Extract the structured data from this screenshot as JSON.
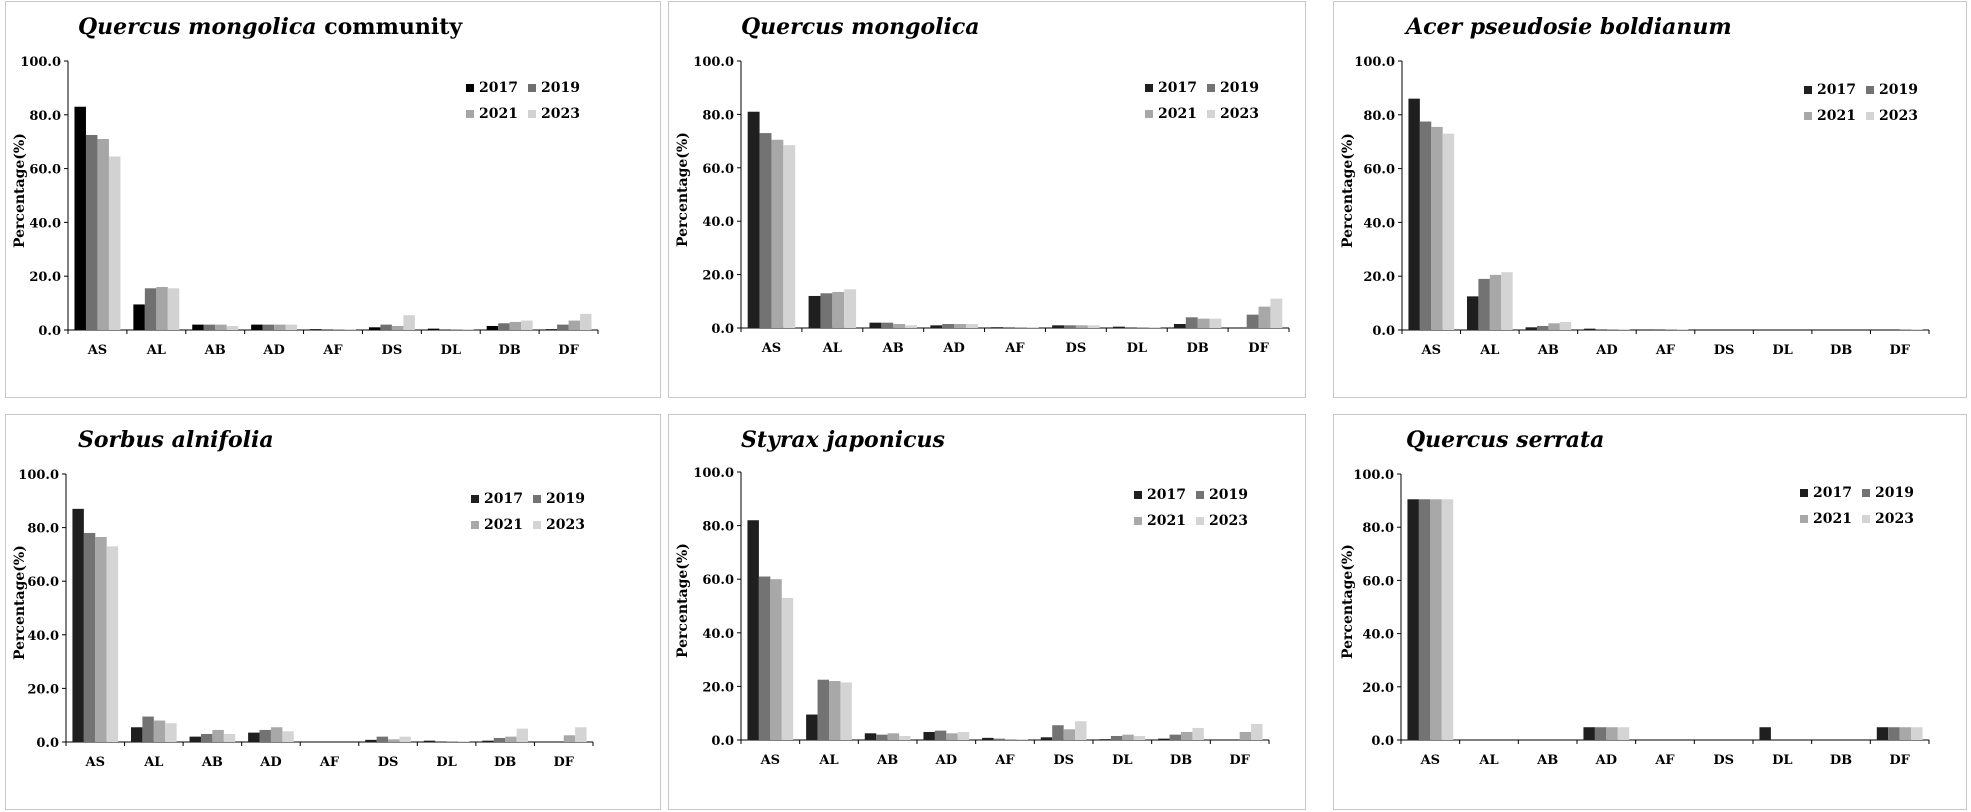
{
  "legend": [
    "2017",
    "2019",
    "2021",
    "2023"
  ],
  "colors": [
    "#1f1f1f",
    "#737373",
    "#a8a8a8",
    "#d4d4d4"
  ],
  "colors_panel1": [
    "#000000",
    "#707070",
    "#a6a6a6",
    "#d2d2d2"
  ],
  "chart_data": [
    {
      "type": "bar",
      "title_italic": "Quercus mongolica",
      "title_plain": " community",
      "ylabel": "Percentage(%)",
      "categories": [
        "AS",
        "AL",
        "AB",
        "AD",
        "AF",
        "DS",
        "DL",
        "DB",
        "DF"
      ],
      "ylim": [
        0,
        100
      ],
      "yticks": [
        "0.0",
        "20.0",
        "40.0",
        "60.0",
        "80.0",
        "100.0"
      ],
      "legend_position": "top-right",
      "grid": false,
      "series": [
        {
          "name": "2017",
          "values": [
            83.0,
            9.5,
            2.0,
            2.0,
            0.3,
            1.0,
            0.5,
            1.5,
            0.3
          ]
        },
        {
          "name": "2019",
          "values": [
            72.5,
            15.5,
            2.0,
            2.0,
            0.3,
            2.0,
            0.3,
            2.5,
            2.0
          ]
        },
        {
          "name": "2021",
          "values": [
            71.0,
            16.0,
            2.0,
            2.0,
            0.3,
            1.5,
            0.3,
            3.0,
            3.5
          ]
        },
        {
          "name": "2023",
          "values": [
            64.5,
            15.5,
            1.5,
            2.0,
            0.3,
            5.5,
            0.3,
            3.5,
            6.0
          ]
        }
      ]
    },
    {
      "type": "bar",
      "title_italic": "Quercus mongolica",
      "title_plain": "",
      "ylabel": "Percentage(%)",
      "categories": [
        "AS",
        "AL",
        "AB",
        "AD",
        "AF",
        "DS",
        "DL",
        "DB",
        "DF"
      ],
      "ylim": [
        0,
        100
      ],
      "yticks": [
        "0.0",
        "20.0",
        "40.0",
        "60.0",
        "80.0",
        "100.0"
      ],
      "legend_position": "top-right",
      "grid": false,
      "series": [
        {
          "name": "2017",
          "values": [
            81.0,
            12.0,
            2.0,
            1.0,
            0.3,
            1.0,
            0.5,
            1.5,
            0.0
          ]
        },
        {
          "name": "2019",
          "values": [
            73.0,
            13.0,
            2.0,
            1.5,
            0.3,
            1.0,
            0.3,
            4.0,
            5.0
          ]
        },
        {
          "name": "2021",
          "values": [
            70.5,
            13.5,
            1.5,
            1.5,
            0.3,
            1.0,
            0.3,
            3.5,
            8.0
          ]
        },
        {
          "name": "2023",
          "values": [
            68.5,
            14.5,
            1.0,
            1.5,
            0.3,
            1.0,
            0.3,
            3.5,
            11.0
          ]
        }
      ]
    },
    {
      "type": "bar",
      "title_italic": "Acer pseudosie boldianum",
      "title_plain": "",
      "ylabel": "Percentage(%)",
      "categories": [
        "AS",
        "AL",
        "AB",
        "AD",
        "AF",
        "DS",
        "DL",
        "DB",
        "DF"
      ],
      "ylim": [
        0,
        100
      ],
      "yticks": [
        "0.0",
        "20.0",
        "40.0",
        "60.0",
        "80.0",
        "100.0"
      ],
      "legend_position": "top-right",
      "grid": false,
      "series": [
        {
          "name": "2017",
          "values": [
            86.0,
            12.5,
            1.0,
            0.5,
            0.0,
            0.0,
            0.0,
            0.0,
            0.0
          ]
        },
        {
          "name": "2019",
          "values": [
            77.5,
            19.0,
            1.5,
            0.3,
            0.3,
            0.0,
            0.0,
            0.0,
            0.0
          ]
        },
        {
          "name": "2021",
          "values": [
            75.5,
            20.5,
            2.5,
            0.3,
            0.3,
            0.0,
            0.0,
            0.0,
            0.3
          ]
        },
        {
          "name": "2023",
          "values": [
            73.0,
            21.5,
            3.0,
            0.3,
            0.3,
            0.0,
            0.0,
            0.0,
            0.3
          ]
        }
      ]
    },
    {
      "type": "bar",
      "title_italic": "Sorbus alnifolia",
      "title_plain": "",
      "ylabel": "Percentage(%)",
      "categories": [
        "AS",
        "AL",
        "AB",
        "AD",
        "AF",
        "DS",
        "DL",
        "DB",
        "DF"
      ],
      "ylim": [
        0,
        100
      ],
      "yticks": [
        "0.0",
        "20.0",
        "40.0",
        "60.0",
        "80.0",
        "100.0"
      ],
      "legend_position": "top-right",
      "grid": false,
      "series": [
        {
          "name": "2017",
          "values": [
            87.0,
            5.5,
            2.0,
            3.5,
            0.0,
            0.8,
            0.5,
            0.5,
            0.0
          ]
        },
        {
          "name": "2019",
          "values": [
            78.0,
            9.5,
            3.0,
            4.5,
            0.0,
            2.0,
            0.3,
            1.5,
            0.0
          ]
        },
        {
          "name": "2021",
          "values": [
            76.5,
            8.0,
            4.5,
            5.5,
            0.0,
            1.0,
            0.3,
            2.0,
            2.5
          ]
        },
        {
          "name": "2023",
          "values": [
            73.0,
            7.0,
            3.0,
            4.0,
            0.0,
            2.0,
            0.3,
            5.0,
            5.5
          ]
        }
      ]
    },
    {
      "type": "bar",
      "title_italic": "Styrax japonicus",
      "title_plain": "",
      "ylabel": "Percentage(%)",
      "categories": [
        "AS",
        "AL",
        "AB",
        "AD",
        "AF",
        "DS",
        "DL",
        "DB",
        "DF"
      ],
      "ylim": [
        0,
        100
      ],
      "yticks": [
        "0.0",
        "20.0",
        "40.0",
        "60.0",
        "80.0",
        "100.0"
      ],
      "legend_position": "top-right",
      "grid": false,
      "series": [
        {
          "name": "2017",
          "values": [
            82.0,
            9.5,
            2.5,
            3.0,
            0.8,
            1.0,
            0.3,
            0.5,
            0.0
          ]
        },
        {
          "name": "2019",
          "values": [
            61.0,
            22.5,
            2.0,
            3.5,
            0.5,
            5.5,
            1.5,
            2.0,
            0.0
          ]
        },
        {
          "name": "2021",
          "values": [
            60.0,
            22.0,
            2.5,
            2.5,
            0.3,
            4.0,
            2.0,
            3.0,
            3.0
          ]
        },
        {
          "name": "2023",
          "values": [
            53.0,
            21.5,
            1.5,
            3.0,
            0.3,
            7.0,
            1.5,
            4.5,
            6.0
          ]
        }
      ]
    },
    {
      "type": "bar",
      "title_italic": "Quercus serrata",
      "title_plain": "",
      "ylabel": "Percentage(%)",
      "categories": [
        "AS",
        "AL",
        "AB",
        "AD",
        "AF",
        "DS",
        "DL",
        "DB",
        "DF"
      ],
      "ylim": [
        0,
        100
      ],
      "yticks": [
        "0.0",
        "20.0",
        "40.0",
        "60.0",
        "80.0",
        "100.0"
      ],
      "legend_position": "top-right",
      "grid": false,
      "series": [
        {
          "name": "2017",
          "values": [
            90.5,
            0.0,
            0.0,
            4.8,
            0.0,
            0.0,
            4.8,
            0.0,
            4.8
          ]
        },
        {
          "name": "2019",
          "values": [
            90.5,
            0.0,
            0.0,
            4.8,
            0.0,
            0.0,
            0.0,
            0.0,
            4.8
          ]
        },
        {
          "name": "2021",
          "values": [
            90.5,
            0.0,
            0.0,
            4.8,
            0.0,
            0.0,
            0.0,
            0.0,
            4.8
          ]
        },
        {
          "name": "2023",
          "values": [
            90.5,
            0.0,
            0.0,
            4.8,
            0.0,
            0.0,
            0.0,
            0.0,
            4.8
          ]
        }
      ]
    }
  ]
}
